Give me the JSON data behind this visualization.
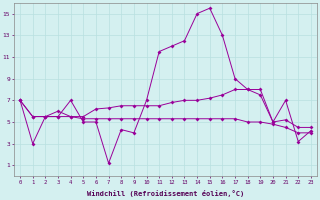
{
  "xlabel": "Windchill (Refroidissement éolien,°C)",
  "bg_color": "#d4f0f0",
  "grid_color": "#b8e0e0",
  "line_color": "#990099",
  "line1_x": [
    0,
    1,
    2,
    3,
    4,
    5,
    6,
    7,
    8,
    9,
    10,
    11,
    12,
    13,
    14,
    15,
    16,
    17,
    18,
    19,
    20,
    21,
    22,
    23
  ],
  "line1_y": [
    7.0,
    3.0,
    5.5,
    5.5,
    7.0,
    5.0,
    5.0,
    1.2,
    4.3,
    4.0,
    7.0,
    11.5,
    12.0,
    12.5,
    15.0,
    15.5,
    13.0,
    9.0,
    8.0,
    8.0,
    5.0,
    7.0,
    3.2,
    4.2
  ],
  "line2_x": [
    0,
    1,
    2,
    3,
    4,
    5,
    6,
    7,
    8,
    9,
    10,
    11,
    12,
    13,
    14,
    15,
    16,
    17,
    18,
    19,
    20,
    21,
    22,
    23
  ],
  "line2_y": [
    7.0,
    5.5,
    5.5,
    6.0,
    5.5,
    5.5,
    6.2,
    6.3,
    6.5,
    6.5,
    6.5,
    6.5,
    6.8,
    7.0,
    7.0,
    7.2,
    7.5,
    8.0,
    8.0,
    7.5,
    5.0,
    5.2,
    4.5,
    4.5
  ],
  "line3_x": [
    0,
    1,
    2,
    3,
    4,
    5,
    6,
    7,
    8,
    9,
    10,
    11,
    12,
    13,
    14,
    15,
    16,
    17,
    18,
    19,
    20,
    21,
    22,
    23
  ],
  "line3_y": [
    7.0,
    5.5,
    5.5,
    5.5,
    5.5,
    5.3,
    5.3,
    5.3,
    5.3,
    5.3,
    5.3,
    5.3,
    5.3,
    5.3,
    5.3,
    5.3,
    5.3,
    5.3,
    5.0,
    5.0,
    4.8,
    4.5,
    4.0,
    4.0
  ],
  "xlim": [
    -0.5,
    23.5
  ],
  "ylim": [
    0,
    16
  ],
  "xticks": [
    0,
    1,
    2,
    3,
    4,
    5,
    6,
    7,
    8,
    9,
    10,
    11,
    12,
    13,
    14,
    15,
    16,
    17,
    18,
    19,
    20,
    21,
    22,
    23
  ],
  "yticks": [
    1,
    3,
    5,
    7,
    9,
    11,
    13,
    15
  ]
}
